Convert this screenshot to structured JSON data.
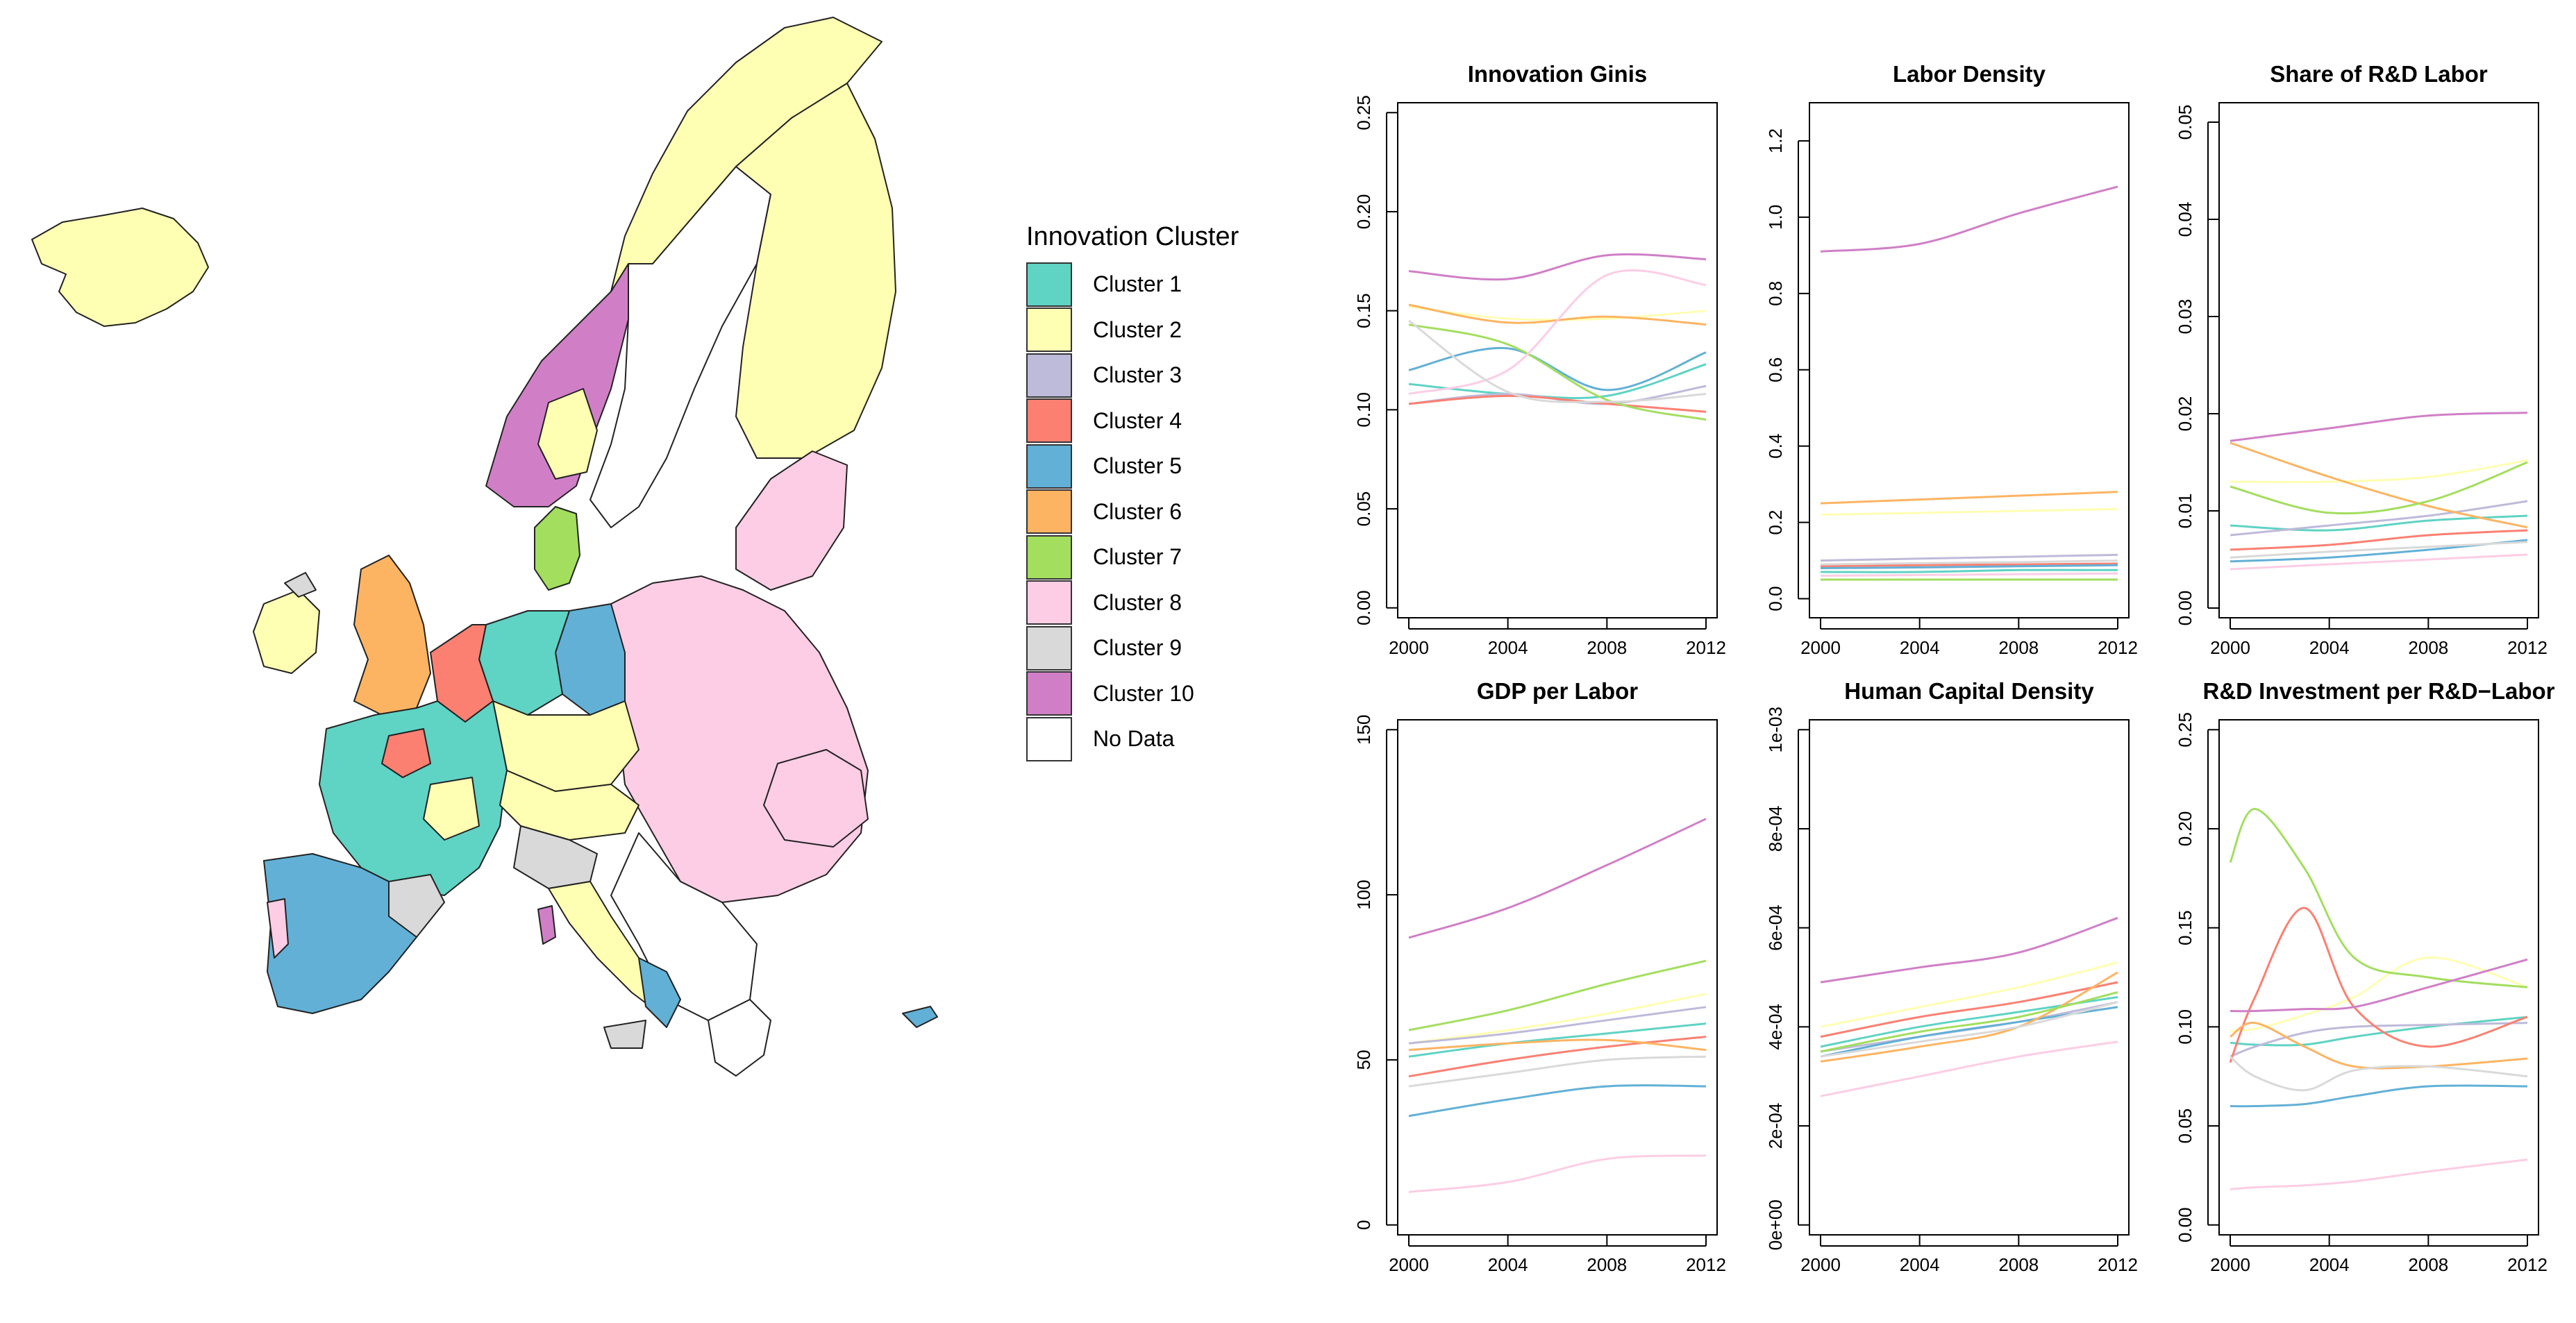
{
  "legend": {
    "title": "Innovation Cluster",
    "items": [
      {
        "label": "Cluster 1",
        "color": "#5fd3c4"
      },
      {
        "label": "Cluster 2",
        "color": "#ffffb3"
      },
      {
        "label": "Cluster 3",
        "color": "#bebada"
      },
      {
        "label": "Cluster 4",
        "color": "#fb8072"
      },
      {
        "label": "Cluster 5",
        "color": "#62b0d6"
      },
      {
        "label": "Cluster 6",
        "color": "#fdb462"
      },
      {
        "label": "Cluster 7",
        "color": "#a3de5f"
      },
      {
        "label": "Cluster 8",
        "color": "#fccde5"
      },
      {
        "label": "Cluster 9",
        "color": "#d9d9d9"
      },
      {
        "label": "Cluster 10",
        "color": "#d07fc7"
      },
      {
        "label": "No Data",
        "color": "#ffffff"
      }
    ]
  },
  "chart_data": [
    {
      "type": "line",
      "title": "Innovation Ginis",
      "x": [
        2000,
        2004,
        2008,
        2012
      ],
      "xticks": [
        "2000",
        "2004",
        "2008",
        "2012"
      ],
      "ylim": [
        -0.005,
        0.255
      ],
      "yticks": [
        "0.00",
        "0.05",
        "0.10",
        "0.15",
        "0.20",
        "0.25"
      ],
      "ytick_values": [
        0,
        0.05,
        0.1,
        0.15,
        0.2,
        0.25
      ],
      "series": [
        {
          "name": "Cluster 1",
          "values": [
            0.113,
            0.108,
            0.107,
            0.123
          ]
        },
        {
          "name": "Cluster 2",
          "values": [
            0.152,
            0.146,
            0.146,
            0.15
          ]
        },
        {
          "name": "Cluster 3",
          "values": [
            0.103,
            0.108,
            0.103,
            0.112
          ]
        },
        {
          "name": "Cluster 4",
          "values": [
            0.103,
            0.107,
            0.103,
            0.099
          ]
        },
        {
          "name": "Cluster 5",
          "values": [
            0.12,
            0.131,
            0.11,
            0.129
          ]
        },
        {
          "name": "Cluster 6",
          "values": [
            0.153,
            0.144,
            0.147,
            0.143
          ]
        },
        {
          "name": "Cluster 7",
          "values": [
            0.143,
            0.133,
            0.105,
            0.095
          ]
        },
        {
          "name": "Cluster 8",
          "values": [
            0.108,
            0.12,
            0.168,
            0.163
          ]
        },
        {
          "name": "Cluster 9",
          "values": [
            0.145,
            0.109,
            0.104,
            0.108
          ]
        },
        {
          "name": "Cluster 10",
          "values": [
            0.17,
            0.166,
            0.178,
            0.176
          ]
        }
      ]
    },
    {
      "type": "line",
      "title": "Labor Density",
      "x": [
        2000,
        2004,
        2008,
        2012
      ],
      "xticks": [
        "2000",
        "2004",
        "2008",
        "2012"
      ],
      "ylim": [
        -0.05,
        1.3
      ],
      "yticks": [
        "0.0",
        "0.2",
        "0.4",
        "0.6",
        "0.8",
        "1.0",
        "1.2"
      ],
      "ytick_values": [
        0,
        0.2,
        0.4,
        0.6,
        0.8,
        1.0,
        1.2
      ],
      "series": [
        {
          "name": "Cluster 1",
          "values": [
            0.07,
            0.07,
            0.075,
            0.075
          ]
        },
        {
          "name": "Cluster 2",
          "values": [
            0.22,
            0.225,
            0.23,
            0.235
          ]
        },
        {
          "name": "Cluster 3",
          "values": [
            0.1,
            0.105,
            0.11,
            0.115
          ]
        },
        {
          "name": "Cluster 4",
          "values": [
            0.085,
            0.088,
            0.09,
            0.092
          ]
        },
        {
          "name": "Cluster 5",
          "values": [
            0.08,
            0.082,
            0.085,
            0.088
          ]
        },
        {
          "name": "Cluster 6",
          "values": [
            0.25,
            0.26,
            0.27,
            0.28
          ]
        },
        {
          "name": "Cluster 7",
          "values": [
            0.05,
            0.05,
            0.05,
            0.05
          ]
        },
        {
          "name": "Cluster 8",
          "values": [
            0.06,
            0.062,
            0.064,
            0.066
          ]
        },
        {
          "name": "Cluster 9",
          "values": [
            0.09,
            0.093,
            0.096,
            0.1
          ]
        },
        {
          "name": "Cluster 10",
          "values": [
            0.91,
            0.93,
            1.01,
            1.08
          ]
        }
      ]
    },
    {
      "type": "line",
      "title": "Share of R&D Labor",
      "x": [
        2000,
        2004,
        2008,
        2012
      ],
      "xticks": [
        "2000",
        "2004",
        "2008",
        "2012"
      ],
      "ylim": [
        -0.001,
        0.052
      ],
      "yticks": [
        "0.00",
        "0.01",
        "0.02",
        "0.03",
        "0.04",
        "0.05"
      ],
      "ytick_values": [
        0,
        0.01,
        0.02,
        0.03,
        0.04,
        0.05
      ],
      "series": [
        {
          "name": "Cluster 1",
          "values": [
            0.0085,
            0.008,
            0.009,
            0.0095
          ]
        },
        {
          "name": "Cluster 2",
          "values": [
            0.013,
            0.013,
            0.0135,
            0.0152
          ]
        },
        {
          "name": "Cluster 3",
          "values": [
            0.0075,
            0.0085,
            0.0095,
            0.011
          ]
        },
        {
          "name": "Cluster 4",
          "values": [
            0.006,
            0.0065,
            0.0075,
            0.008
          ]
        },
        {
          "name": "Cluster 5",
          "values": [
            0.0048,
            0.0052,
            0.006,
            0.007
          ]
        },
        {
          "name": "Cluster 6",
          "values": [
            0.017,
            0.0135,
            0.0105,
            0.0083
          ]
        },
        {
          "name": "Cluster 7",
          "values": [
            0.0125,
            0.0098,
            0.011,
            0.015
          ]
        },
        {
          "name": "Cluster 8",
          "values": [
            0.004,
            0.0045,
            0.005,
            0.0055
          ]
        },
        {
          "name": "Cluster 9",
          "values": [
            0.0052,
            0.0058,
            0.0063,
            0.0068
          ]
        },
        {
          "name": "Cluster 10",
          "values": [
            0.0172,
            0.0185,
            0.0198,
            0.0201
          ]
        }
      ]
    },
    {
      "type": "line",
      "title": "GDP per Labor",
      "x": [
        2000,
        2004,
        2008,
        2012
      ],
      "xticks": [
        "2000",
        "2004",
        "2008",
        "2012"
      ],
      "ylim": [
        -3,
        153
      ],
      "yticks": [
        "0",
        "50",
        "100",
        "150"
      ],
      "ytick_values": [
        0,
        50,
        100,
        150
      ],
      "series": [
        {
          "name": "Cluster 1",
          "values": [
            51,
            55,
            58,
            61
          ]
        },
        {
          "name": "Cluster 2",
          "values": [
            55,
            59,
            64,
            70
          ]
        },
        {
          "name": "Cluster 3",
          "values": [
            55,
            58,
            62,
            66
          ]
        },
        {
          "name": "Cluster 4",
          "values": [
            45,
            50,
            54,
            57
          ]
        },
        {
          "name": "Cluster 5",
          "values": [
            33,
            38,
            42,
            42
          ]
        },
        {
          "name": "Cluster 6",
          "values": [
            53,
            55,
            56,
            53
          ]
        },
        {
          "name": "Cluster 7",
          "values": [
            59,
            65,
            73,
            80
          ]
        },
        {
          "name": "Cluster 8",
          "values": [
            10,
            13,
            20,
            21
          ]
        },
        {
          "name": "Cluster 9",
          "values": [
            42,
            46,
            50,
            51
          ]
        },
        {
          "name": "Cluster 10",
          "values": [
            87,
            96,
            109,
            123
          ]
        }
      ]
    },
    {
      "type": "line",
      "title": "Human Capital Density",
      "x": [
        2000,
        2004,
        2008,
        2012
      ],
      "xticks": [
        "2000",
        "2004",
        "2008",
        "2012"
      ],
      "ylim": [
        -2e-05,
        0.00102
      ],
      "yticks": [
        "0e+00",
        "2e-04",
        "4e-04",
        "6e-04",
        "8e-04",
        "1e-03"
      ],
      "ytick_values": [
        0,
        0.0002,
        0.0004,
        0.0006,
        0.0008,
        0.001
      ],
      "series": [
        {
          "name": "Cluster 1",
          "values": [
            0.00036,
            0.0004,
            0.00043,
            0.00046
          ]
        },
        {
          "name": "Cluster 2",
          "values": [
            0.0004,
            0.00044,
            0.00048,
            0.00053
          ]
        },
        {
          "name": "Cluster 3",
          "values": [
            0.00035,
            0.00038,
            0.00041,
            0.00045
          ]
        },
        {
          "name": "Cluster 4",
          "values": [
            0.00038,
            0.00042,
            0.00045,
            0.00049
          ]
        },
        {
          "name": "Cluster 5",
          "values": [
            0.00034,
            0.00038,
            0.00041,
            0.00044
          ]
        },
        {
          "name": "Cluster 6",
          "values": [
            0.00033,
            0.00036,
            0.0004,
            0.00051
          ]
        },
        {
          "name": "Cluster 7",
          "values": [
            0.00035,
            0.00039,
            0.00042,
            0.00047
          ]
        },
        {
          "name": "Cluster 8",
          "values": [
            0.00026,
            0.0003,
            0.00034,
            0.00037
          ]
        },
        {
          "name": "Cluster 9",
          "values": [
            0.00034,
            0.00037,
            0.0004,
            0.00045
          ]
        },
        {
          "name": "Cluster 10",
          "values": [
            0.00049,
            0.00052,
            0.00055,
            0.00062
          ]
        }
      ]
    },
    {
      "type": "line",
      "title": "R&D Investment per R&D−Labor",
      "x": [
        2000,
        2001,
        2003,
        2005,
        2008,
        2012
      ],
      "xticks": [
        "2000",
        "2004",
        "2008",
        "2012"
      ],
      "ylim": [
        -0.005,
        0.255
      ],
      "yticks": [
        "0.00",
        "0.05",
        "0.10",
        "0.15",
        "0.20",
        "0.25"
      ],
      "ytick_values": [
        0,
        0.05,
        0.1,
        0.15,
        0.2,
        0.25
      ],
      "series": [
        {
          "name": "Cluster 1",
          "values": [
            0.092,
            0.091,
            0.091,
            0.095,
            0.1,
            0.105
          ]
        },
        {
          "name": "Cluster 2",
          "values": [
            0.098,
            0.099,
            0.106,
            0.115,
            0.135,
            0.12
          ]
        },
        {
          "name": "Cluster 3",
          "values": [
            0.085,
            0.09,
            0.097,
            0.1,
            0.101,
            0.102
          ]
        },
        {
          "name": "Cluster 4",
          "values": [
            0.082,
            0.115,
            0.16,
            0.11,
            0.09,
            0.105
          ]
        },
        {
          "name": "Cluster 5",
          "values": [
            0.06,
            0.06,
            0.061,
            0.065,
            0.07,
            0.07
          ]
        },
        {
          "name": "Cluster 6",
          "values": [
            0.095,
            0.102,
            0.09,
            0.08,
            0.08,
            0.084
          ]
        },
        {
          "name": "Cluster 7",
          "values": [
            0.183,
            0.21,
            0.18,
            0.135,
            0.125,
            0.12
          ]
        },
        {
          "name": "Cluster 8",
          "values": [
            0.018,
            0.019,
            0.02,
            0.022,
            0.027,
            0.033
          ]
        },
        {
          "name": "Cluster 9",
          "values": [
            0.085,
            0.075,
            0.068,
            0.078,
            0.08,
            0.075
          ]
        },
        {
          "name": "Cluster 10",
          "values": [
            0.108,
            0.108,
            0.109,
            0.11,
            0.12,
            0.134
          ]
        }
      ]
    }
  ]
}
